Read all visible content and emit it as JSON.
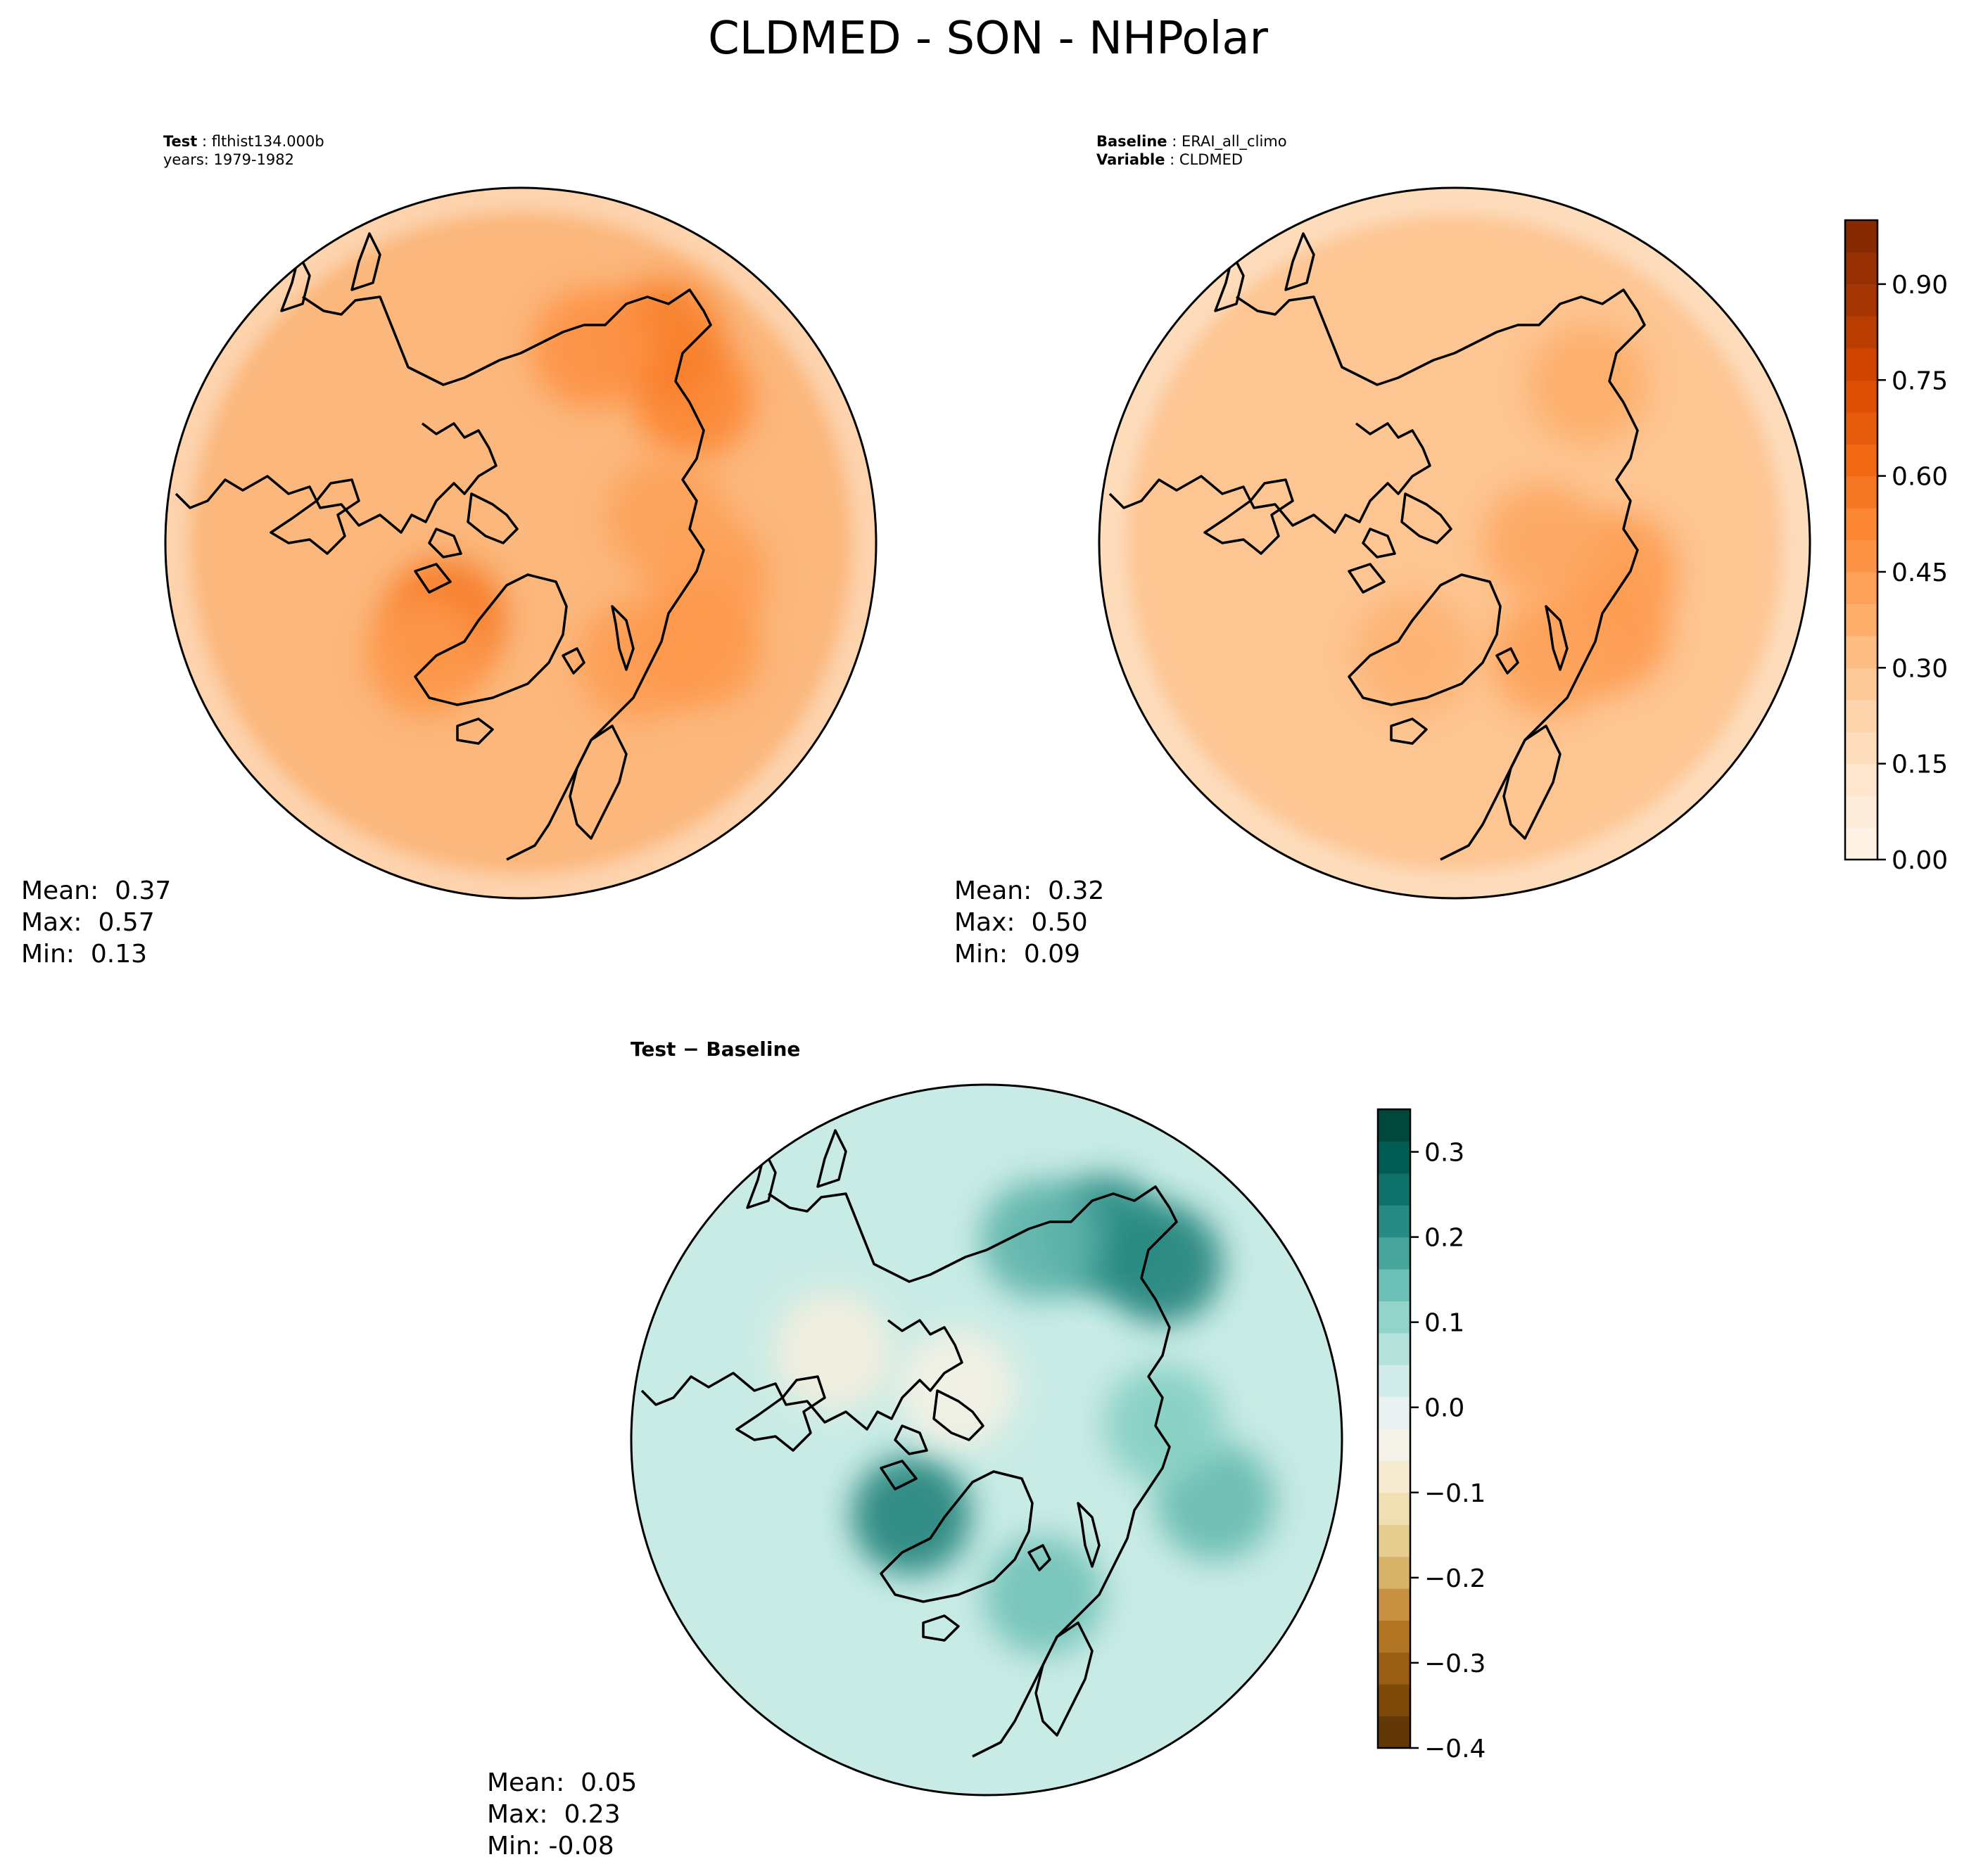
{
  "figure": {
    "title": "CLDMED - SON - NHPolar"
  },
  "panels": {
    "test": {
      "line1_label": "Test",
      "line1_value": "flthist134.000b",
      "line2": "years: 1979-1982",
      "stats": {
        "mean": "Mean:  0.37",
        "max": "Max:  0.57",
        "min": "Min:  0.13"
      }
    },
    "baseline": {
      "line1_label": "Baseline",
      "line1_value": "ERAI_all_climo",
      "line2_label": "Variable",
      "line2_value": "CLDMED",
      "stats": {
        "mean": "Mean:  0.32",
        "max": "Max:  0.50",
        "min": "Min:  0.09"
      }
    },
    "difference": {
      "title": "Test − Baseline",
      "stats": {
        "mean": "Mean:  0.05",
        "max": "Max:  0.23",
        "min": "Min: -0.08"
      }
    }
  },
  "chart_data": [
    {
      "type": "heatmap",
      "name": "test",
      "projection": "north-polar-stereographic",
      "summary": {
        "mean": 0.37,
        "max": 0.57,
        "min": 0.13
      },
      "colormap": "Oranges",
      "vmin": 0.0,
      "vmax": 1.0,
      "blobs": [
        {
          "lon": 130,
          "lat": 52,
          "value": 0.52
        },
        {
          "lon": 145,
          "lat": 48,
          "value": 0.55
        },
        {
          "lon": 160,
          "lat": 55,
          "value": 0.48
        },
        {
          "lon": -45,
          "lat": 72,
          "value": 0.57
        },
        {
          "lon": -40,
          "lat": 65,
          "value": 0.46
        },
        {
          "lon": 45,
          "lat": 62,
          "value": 0.44
        },
        {
          "lon": 80,
          "lat": 58,
          "value": 0.44
        },
        {
          "lon": 100,
          "lat": 65,
          "value": 0.42
        },
        {
          "lon": 60,
          "lat": 55,
          "value": 0.46
        }
      ]
    },
    {
      "type": "heatmap",
      "name": "baseline",
      "projection": "north-polar-stereographic",
      "summary": {
        "mean": 0.32,
        "max": 0.5,
        "min": 0.09
      },
      "colormap": "Oranges",
      "vmin": 0.0,
      "vmax": 1.0,
      "blobs": [
        {
          "lon": 60,
          "lat": 60,
          "value": 0.45
        },
        {
          "lon": 80,
          "lat": 62,
          "value": 0.44
        },
        {
          "lon": 90,
          "lat": 75,
          "value": 0.4
        },
        {
          "lon": 40,
          "lat": 65,
          "value": 0.42
        },
        {
          "lon": -20,
          "lat": 70,
          "value": 0.36
        },
        {
          "lon": 140,
          "lat": 55,
          "value": 0.38
        }
      ]
    },
    {
      "type": "heatmap",
      "name": "difference",
      "projection": "north-polar-stereographic",
      "summary": {
        "mean": 0.05,
        "max": 0.23,
        "min": -0.08
      },
      "colormap": "BrBG",
      "vmin": -0.4,
      "vmax": 0.35,
      "blobs": [
        {
          "lon": 135,
          "lat": 48,
          "value": 0.23
        },
        {
          "lon": 150,
          "lat": 50,
          "value": 0.22
        },
        {
          "lon": 165,
          "lat": 55,
          "value": 0.16
        },
        {
          "lon": -45,
          "lat": 72,
          "value": 0.23
        },
        {
          "lon": 20,
          "lat": 62,
          "value": 0.14
        },
        {
          "lon": 75,
          "lat": 50,
          "value": 0.15
        },
        {
          "lon": 95,
          "lat": 60,
          "value": 0.12
        },
        {
          "lon": -120,
          "lat": 60,
          "value": -0.06
        },
        {
          "lon": -150,
          "lat": 80,
          "value": -0.05
        }
      ]
    }
  ],
  "colorbars": {
    "absolute": {
      "ticks": [
        "0.00",
        "0.15",
        "0.30",
        "0.45",
        "0.60",
        "0.75",
        "0.90"
      ]
    },
    "difference": {
      "ticks": [
        "0.3",
        "0.2",
        "0.1",
        "0.0",
        "−0.1",
        "−0.2",
        "−0.3",
        "−0.4"
      ]
    }
  }
}
